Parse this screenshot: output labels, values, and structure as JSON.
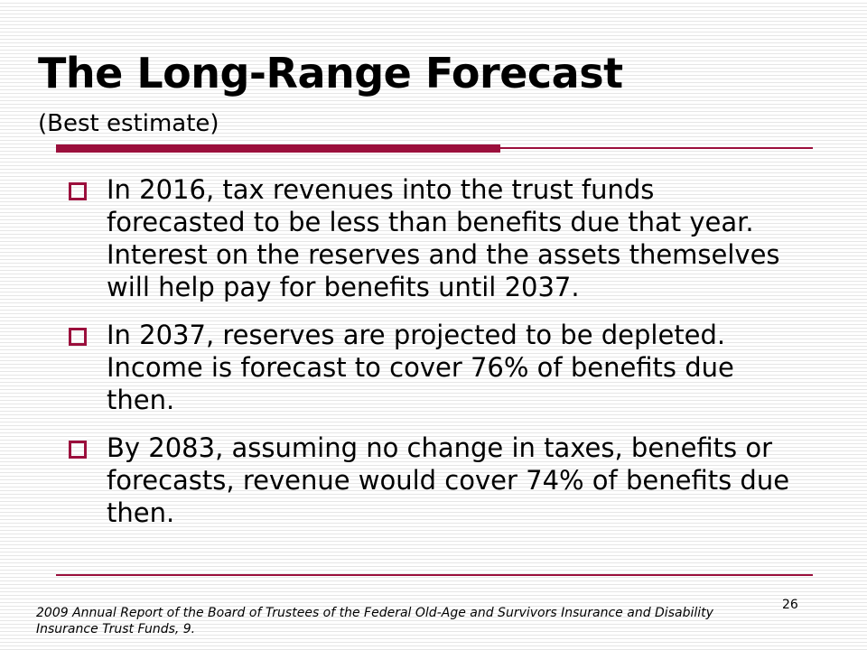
{
  "slide": {
    "title": "The Long-Range Forecast",
    "subtitle": "(Best estimate)",
    "bullets": [
      {
        "text": "In 2016, tax revenues into the trust funds forecasted to be less than benefits due that year.  Interest on the reserves and the assets themselves will help pay for benefits until 2037."
      },
      {
        "text": "In 2037, reserves are projected to be depleted.  Income is forecast to cover 76% of benefits due then."
      },
      {
        "text": "By 2083, assuming no change in taxes, benefits or forecasts, revenue would cover 74% of benefits due then."
      }
    ],
    "page_number": "26",
    "footnote": "2009 Annual Report of the Board of Trustees of the Federal Old-Age and Survivors Insurance and Disability  Insurance Trust Funds, 9."
  },
  "colors": {
    "accent": "#9b0f3c",
    "text": "#000000",
    "background_stripe": "#e6e6e6"
  },
  "icons": {
    "bullet": "hollow-square-bullet-icon"
  }
}
